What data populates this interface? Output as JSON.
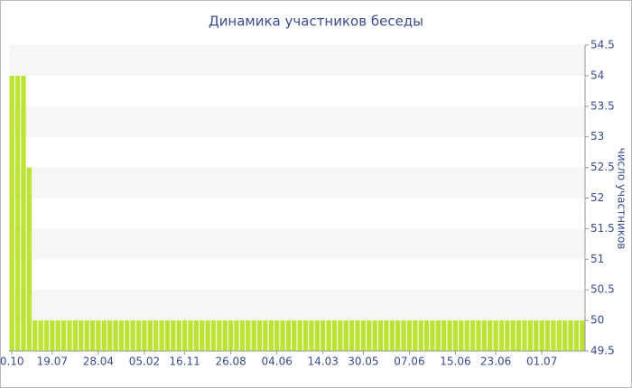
{
  "chart_data": {
    "type": "bar",
    "title": "Динамика участников беседы",
    "y_label": "число участников",
    "categories": [
      "0.10",
      null,
      null,
      null,
      null,
      null,
      null,
      "19.07",
      null,
      null,
      null,
      null,
      null,
      null,
      null,
      "28.04",
      null,
      null,
      null,
      null,
      null,
      null,
      null,
      "05.02",
      null,
      null,
      null,
      null,
      null,
      null,
      "16.11",
      null,
      null,
      null,
      null,
      null,
      null,
      null,
      "26.08",
      null,
      null,
      null,
      null,
      null,
      null,
      null,
      "04.06",
      null,
      null,
      null,
      null,
      null,
      null,
      null,
      "14.03",
      null,
      null,
      null,
      null,
      null,
      null,
      "30.05",
      null,
      null,
      null,
      null,
      null,
      null,
      null,
      "07.06",
      null,
      null,
      null,
      null,
      null,
      null,
      null,
      "15.06",
      null,
      null,
      null,
      null,
      null,
      null,
      "23.06",
      null,
      null,
      null,
      null,
      null,
      null,
      null,
      "01.07",
      null,
      null,
      null,
      null,
      null,
      null,
      null
    ],
    "values": [
      54,
      54,
      54,
      52.5,
      50,
      50,
      50,
      50,
      50,
      50,
      50,
      50,
      50,
      50,
      50,
      50,
      50,
      50,
      50,
      50,
      50,
      50,
      50,
      50,
      50,
      50,
      50,
      50,
      50,
      50,
      50,
      50,
      50,
      50,
      50,
      50,
      50,
      50,
      50,
      50,
      50,
      50,
      50,
      50,
      50,
      50,
      50,
      50,
      50,
      50,
      50,
      50,
      50,
      50,
      50,
      50,
      50,
      50,
      50,
      50,
      50,
      50,
      50,
      50,
      50,
      50,
      50,
      50,
      50,
      50,
      50,
      50,
      50,
      50,
      50,
      50,
      50,
      50,
      50,
      50,
      50,
      50,
      50,
      50,
      50,
      50,
      50,
      50,
      50,
      50,
      50,
      50,
      50,
      50,
      50,
      50,
      50,
      50,
      50,
      50
    ],
    "color": "#bde336",
    "ylim": [
      49.5,
      54.5
    ],
    "yticks": [
      49.5,
      50,
      50.5,
      51,
      51.5,
      52,
      52.5,
      53,
      53.5,
      54,
      54.5
    ],
    "grid": true
  }
}
